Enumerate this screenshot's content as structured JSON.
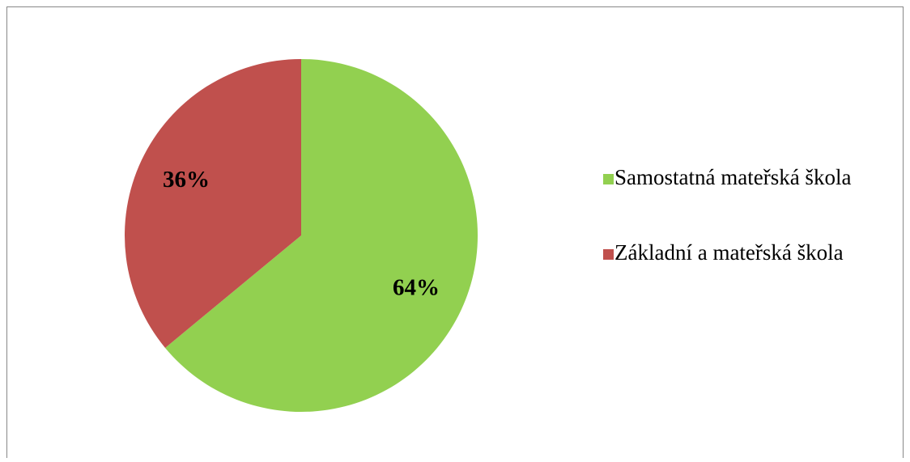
{
  "chart_data": {
    "type": "pie",
    "categories": [
      "Samostatná mateřská škola",
      "Základní a mateřská škola"
    ],
    "values": [
      64,
      36
    ],
    "value_labels": [
      "64%",
      "36%"
    ],
    "colors": [
      "#92d050",
      "#c0504d"
    ],
    "legend": "right"
  }
}
